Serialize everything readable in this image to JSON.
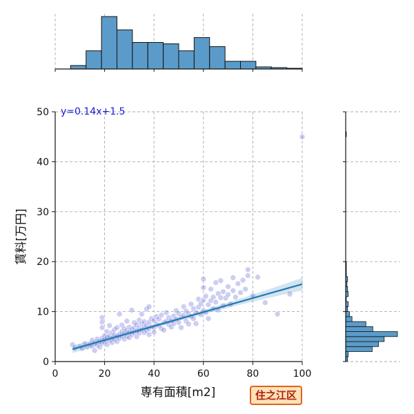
{
  "chart_data": {
    "type": "scatter",
    "xlabel": "専有面積[m2]",
    "ylabel": "賃料[万円]",
    "xlim": [
      0,
      100
    ],
    "ylim": [
      0,
      50
    ],
    "x_ticks": [
      0,
      20,
      40,
      60,
      80,
      100
    ],
    "y_ticks": [
      0,
      10,
      20,
      30,
      40,
      50
    ],
    "grid": true,
    "annotation": "y=0.14x+1.5",
    "regression": {
      "slope": 0.14,
      "intercept": 1.5,
      "x_range": [
        7,
        100
      ]
    },
    "points": [
      [
        7,
        3.4
      ],
      [
        8,
        2.7
      ],
      [
        10,
        3.0
      ],
      [
        11,
        2.6
      ],
      [
        12,
        3.6
      ],
      [
        13,
        2.9
      ],
      [
        14,
        3.4
      ],
      [
        15,
        3.0
      ],
      [
        15,
        4.3
      ],
      [
        16,
        3.7
      ],
      [
        16,
        2.2
      ],
      [
        17,
        4.5
      ],
      [
        17,
        3.3
      ],
      [
        18,
        4.0
      ],
      [
        18,
        2.9
      ],
      [
        19,
        4.7
      ],
      [
        19,
        3.6
      ],
      [
        19,
        8.8
      ],
      [
        19,
        7.9
      ],
      [
        19,
        6.8
      ],
      [
        20,
        3.9
      ],
      [
        20,
        5.2
      ],
      [
        20,
        4.4
      ],
      [
        21,
        4.9
      ],
      [
        21,
        3.4
      ],
      [
        21,
        6.0
      ],
      [
        22,
        5.1
      ],
      [
        22,
        4.2
      ],
      [
        22,
        7.2
      ],
      [
        23,
        4.6
      ],
      [
        23,
        5.8
      ],
      [
        23,
        3.8
      ],
      [
        24,
        5.3
      ],
      [
        24,
        6.4
      ],
      [
        24,
        4.4
      ],
      [
        25,
        5.0
      ],
      [
        25,
        6.8
      ],
      [
        25,
        4.0
      ],
      [
        26,
        5.5
      ],
      [
        26,
        4.6
      ],
      [
        26,
        9.5
      ],
      [
        27,
        6.0
      ],
      [
        27,
        5.1
      ],
      [
        27,
        7.3
      ],
      [
        28,
        5.7
      ],
      [
        28,
        4.5
      ],
      [
        28,
        6.6
      ],
      [
        29,
        6.2
      ],
      [
        29,
        5.0
      ],
      [
        29,
        8.1
      ],
      [
        30,
        5.9
      ],
      [
        30,
        6.9
      ],
      [
        30,
        4.8
      ],
      [
        31,
        6.4
      ],
      [
        31,
        5.4
      ],
      [
        31,
        10.3
      ],
      [
        32,
        6.8
      ],
      [
        32,
        5.8
      ],
      [
        32,
        7.8
      ],
      [
        33,
        6.1
      ],
      [
        33,
        7.4
      ],
      [
        33,
        5.0
      ],
      [
        34,
        6.7
      ],
      [
        34,
        8.3
      ],
      [
        34,
        5.7
      ],
      [
        35,
        6.3
      ],
      [
        35,
        7.6
      ],
      [
        35,
        9.5
      ],
      [
        36,
        6.9
      ],
      [
        36,
        5.8
      ],
      [
        36,
        8.0
      ],
      [
        37,
        7.3
      ],
      [
        37,
        6.2
      ],
      [
        37,
        10.5
      ],
      [
        38,
        6.6
      ],
      [
        38,
        7.9
      ],
      [
        38,
        5.4
      ],
      [
        38,
        11.0
      ],
      [
        39,
        7.0
      ],
      [
        39,
        8.6
      ],
      [
        40,
        6.8
      ],
      [
        40,
        8.2
      ],
      [
        40,
        5.9
      ],
      [
        41,
        7.5
      ],
      [
        41,
        9.0
      ],
      [
        42,
        7.2
      ],
      [
        42,
        8.5
      ],
      [
        43,
        6.6
      ],
      [
        43,
        9.3
      ],
      [
        44,
        7.8
      ],
      [
        44,
        6.3
      ],
      [
        45,
        8.1
      ],
      [
        45,
        9.8
      ],
      [
        46,
        7.4
      ],
      [
        46,
        8.8
      ],
      [
        47,
        8.2
      ],
      [
        47,
        6.9
      ],
      [
        48,
        9.1
      ],
      [
        48,
        7.6
      ],
      [
        49,
        8.5
      ],
      [
        49,
        10.2
      ],
      [
        50,
        7.8
      ],
      [
        50,
        9.6
      ],
      [
        51,
        8.9
      ],
      [
        51,
        6.8
      ],
      [
        52,
        9.3
      ],
      [
        52,
        11.0
      ],
      [
        53,
        8.1
      ],
      [
        53,
        10.1
      ],
      [
        54,
        9.6
      ],
      [
        54,
        7.5
      ],
      [
        55,
        9.0
      ],
      [
        55,
        11.5
      ],
      [
        56,
        8.6
      ],
      [
        56,
        10.6
      ],
      [
        57,
        9.8
      ],
      [
        57,
        7.6
      ],
      [
        58,
        10.9
      ],
      [
        58,
        12.5
      ],
      [
        59,
        9.4
      ],
      [
        59,
        11.6
      ],
      [
        60,
        10.2
      ],
      [
        60,
        14.8
      ],
      [
        60,
        12.3
      ],
      [
        60,
        16.5
      ],
      [
        61,
        9.8
      ],
      [
        61,
        13.1
      ],
      [
        62,
        11.4
      ],
      [
        62,
        8.6
      ],
      [
        63,
        12.2
      ],
      [
        63,
        14.5
      ],
      [
        64,
        10.6
      ],
      [
        64,
        12.9
      ],
      [
        65,
        11.9
      ],
      [
        65,
        15.8
      ],
      [
        66,
        13.6
      ],
      [
        66,
        10.3
      ],
      [
        67,
        12.8
      ],
      [
        67,
        16.2
      ],
      [
        68,
        14.0
      ],
      [
        68,
        11.2
      ],
      [
        69,
        12.7
      ],
      [
        70,
        15.0
      ],
      [
        70,
        13.4
      ],
      [
        71,
        11.5
      ],
      [
        72,
        14.2
      ],
      [
        72,
        16.8
      ],
      [
        73,
        12.9
      ],
      [
        74,
        15.6
      ],
      [
        75,
        13.8
      ],
      [
        76,
        16.3
      ],
      [
        77,
        14.5
      ],
      [
        78,
        17.2
      ],
      [
        78,
        18.4
      ],
      [
        80,
        13.2
      ],
      [
        82,
        16.9
      ],
      [
        85,
        11.8
      ],
      [
        90,
        9.5
      ],
      [
        95,
        13.5
      ],
      [
        100,
        45
      ]
    ],
    "x_hist": {
      "bin_edges": [
        0,
        6.25,
        12.5,
        18.75,
        25,
        31.25,
        37.5,
        43.75,
        50,
        56.25,
        62.5,
        68.75,
        75,
        81.25,
        87.5,
        93.75,
        100
      ],
      "counts": [
        0,
        5,
        26,
        75,
        56,
        38,
        38,
        36,
        26,
        45,
        32,
        11,
        11,
        3,
        2,
        1
      ]
    },
    "y_hist": {
      "bin_edges": [
        0,
        1,
        2,
        3,
        4,
        5,
        6,
        7,
        8,
        9,
        10,
        11,
        12,
        13,
        14,
        15,
        16,
        17,
        18,
        19,
        20,
        45,
        46
      ],
      "counts": [
        3,
        4,
        42,
        52,
        61,
        82,
        43,
        32,
        10,
        6,
        3,
        4,
        1,
        4,
        3,
        2,
        3,
        1,
        1,
        1,
        0,
        1
      ]
    }
  },
  "badge": {
    "label": "住之江区"
  },
  "colors": {
    "point": "#4a4fcf",
    "regression": "#1f77b4",
    "bar": "#5b9bc9",
    "badge_border": "#e2611f",
    "badge_bg": "#fde2b8",
    "badge_text": "#b0200e"
  }
}
